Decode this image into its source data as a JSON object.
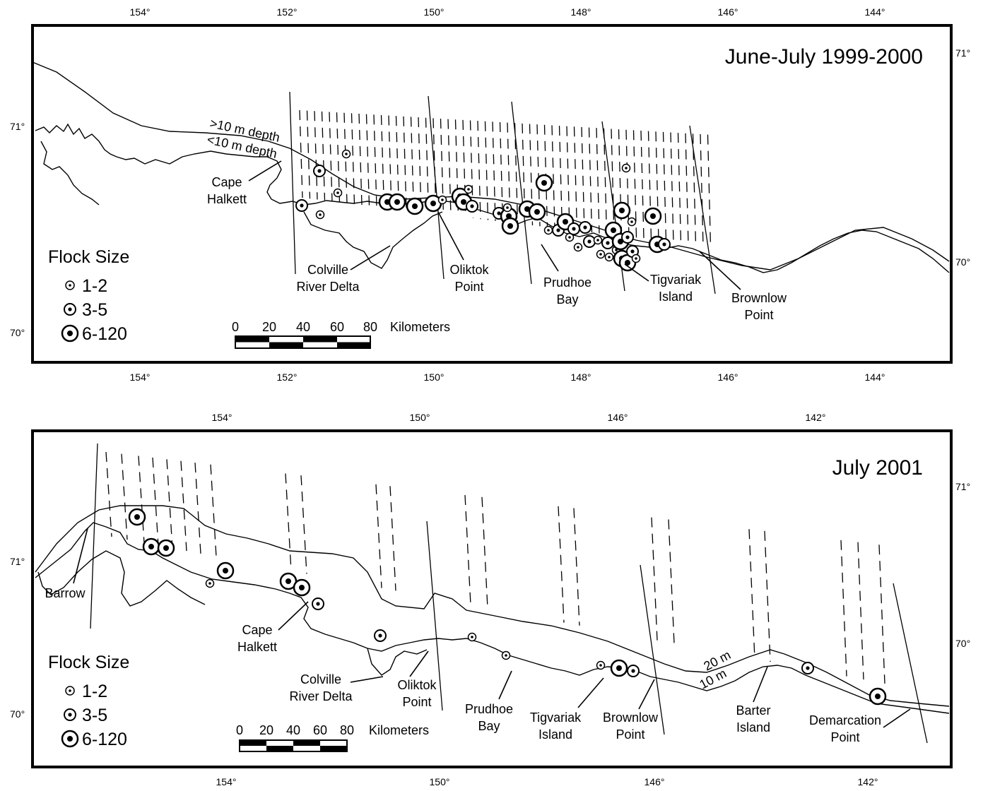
{
  "panels": [
    {
      "title": "June-July 1999-2000",
      "top_lon_ticks": [
        "154°",
        "152°",
        "150°",
        "148°",
        "146°",
        "144°"
      ],
      "bottom_lon_ticks": [
        "154°",
        "152°",
        "150°",
        "148°",
        "146°",
        "144°"
      ],
      "lat_ticks_left": [
        "71°",
        "70°"
      ],
      "lat_ticks_right": [
        "71°",
        "70°"
      ],
      "depth_labels": [
        ">10 m depth",
        "<10 m depth"
      ],
      "place_labels": {
        "cape_halkett": [
          "Cape",
          "Halkett"
        ],
        "colville": [
          "Colville",
          "River Delta"
        ],
        "oliktok": [
          "Oliktok",
          "Point"
        ],
        "prudhoe": [
          "Prudhoe",
          "Bay"
        ],
        "tigvariak": [
          "Tigvariak",
          "Island"
        ],
        "brownlow": [
          "Brownlow",
          "Point"
        ]
      },
      "legend": {
        "title": "Flock Size",
        "items": [
          "1-2",
          "3-5",
          "6-120"
        ]
      },
      "scale": {
        "ticks": [
          "0",
          "20",
          "40",
          "60",
          "80"
        ],
        "unit": "Kilometers"
      }
    },
    {
      "title": "July 2001",
      "top_lon_ticks": [
        "154°",
        "150°",
        "146°",
        "142°"
      ],
      "bottom_lon_ticks": [
        "154°",
        "150°",
        "146°",
        "142°"
      ],
      "lat_ticks_left": [
        "71°",
        "70°"
      ],
      "lat_ticks_right": [
        "71°",
        "70°"
      ],
      "depth_labels": [
        "20 m",
        "10 m"
      ],
      "place_labels": {
        "barrow": [
          "Barrow"
        ],
        "cape_halkett": [
          "Cape",
          "Halkett"
        ],
        "colville": [
          "Colville",
          "River Delta"
        ],
        "oliktok": [
          "Oliktok",
          "Point"
        ],
        "prudhoe": [
          "Prudhoe",
          "Bay"
        ],
        "tigvariak": [
          "Tigvariak",
          "Island"
        ],
        "brownlow": [
          "Brownlow",
          "Point"
        ],
        "barter": [
          "Barter",
          "Island"
        ],
        "demarcation": [
          "Demarcation",
          "Point"
        ]
      },
      "legend": {
        "title": "Flock Size",
        "items": [
          "1-2",
          "3-5",
          "6-120"
        ]
      },
      "scale": {
        "ticks": [
          "0",
          "20",
          "40",
          "60",
          "80"
        ],
        "unit": "Kilometers"
      }
    }
  ]
}
